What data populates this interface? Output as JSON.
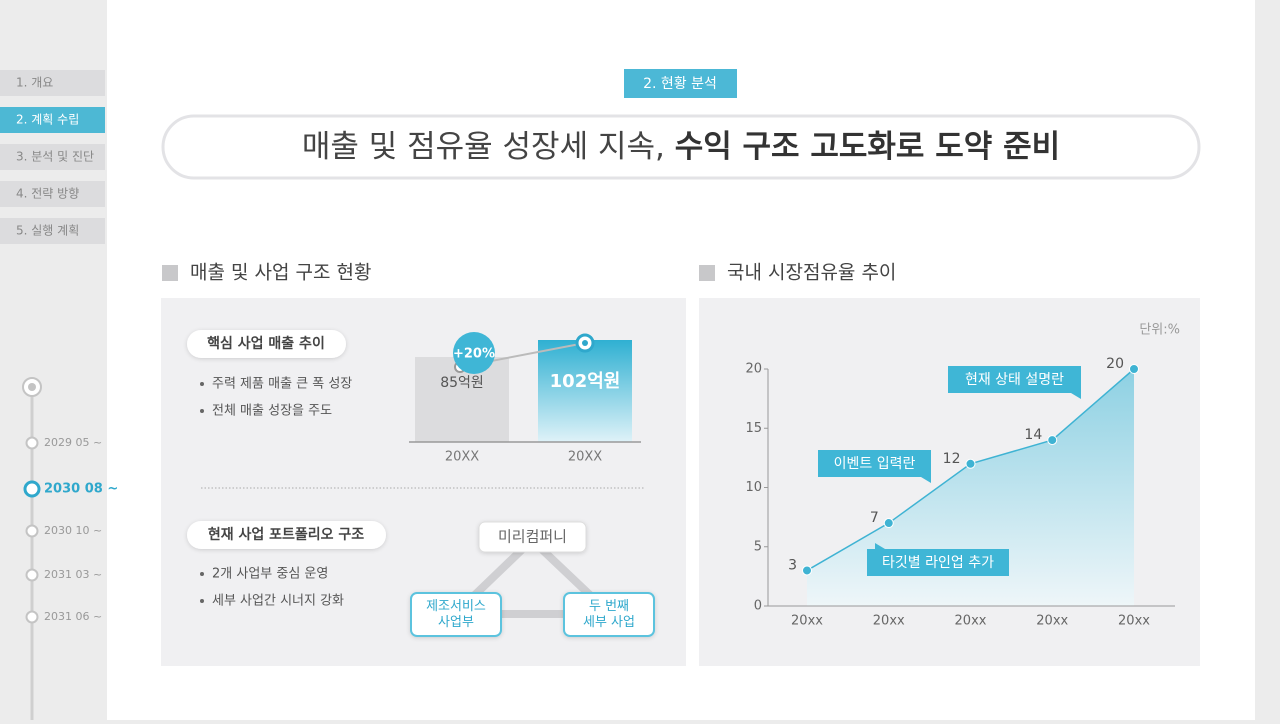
{
  "nav": {
    "items": [
      "1. 개요",
      "2. 계획 수립",
      "3. 분석 및 진단",
      "4. 전략 방향",
      "5. 실행 계획"
    ],
    "active": 1
  },
  "timeline": {
    "items": [
      "2029 05 ~",
      "2030 08 ~",
      "2030 10 ~",
      "2031 03 ~",
      "2031 06 ~"
    ],
    "active": 1
  },
  "header": {
    "badge": "2. 현황 분석",
    "title_normal": "매출 및 점유율 성장세 지속, ",
    "title_bold": "수익 구조 고도화로 도약 준비"
  },
  "left_panel": {
    "heading": "매출 및 사업 구조 현황",
    "revenue": {
      "label": "핵심 사업 매출 추이",
      "bullets": [
        "주력 제품 매출 큰 폭 성장",
        "전체 매출 성장을 주도"
      ],
      "categories": [
        "20XX",
        "20XX"
      ],
      "values": [
        85,
        102
      ],
      "value_labels": [
        "85억원",
        "102억원"
      ],
      "growth": "+20%"
    },
    "portfolio": {
      "label": "현재 사업 포트폴리오 구조",
      "bullets": [
        "2개 사업부 중심 운영",
        "세부 사업간 시너지 강화"
      ],
      "nodes": [
        {
          "lines": [
            "미리컴퍼니"
          ]
        },
        {
          "lines": [
            "제조서비스",
            "사업부"
          ]
        },
        {
          "lines": [
            "두 번째",
            "세부 사업"
          ]
        }
      ]
    }
  },
  "right_panel": {
    "heading": "국내 시장점유율 추이"
  },
  "chart_data": {
    "type": "line",
    "unit": "단위:%",
    "categories": [
      "20xx",
      "20xx",
      "20xx",
      "20xx",
      "20xx"
    ],
    "values": [
      3,
      7,
      12,
      14,
      20
    ],
    "ylim": [
      0,
      20
    ],
    "yticks": [
      0,
      5,
      10,
      15,
      20
    ],
    "color": "#3fb3d3",
    "annotations": [
      "현재 상태 설명란",
      "이벤트 입력란",
      "타깃별 라인업 추가"
    ]
  }
}
